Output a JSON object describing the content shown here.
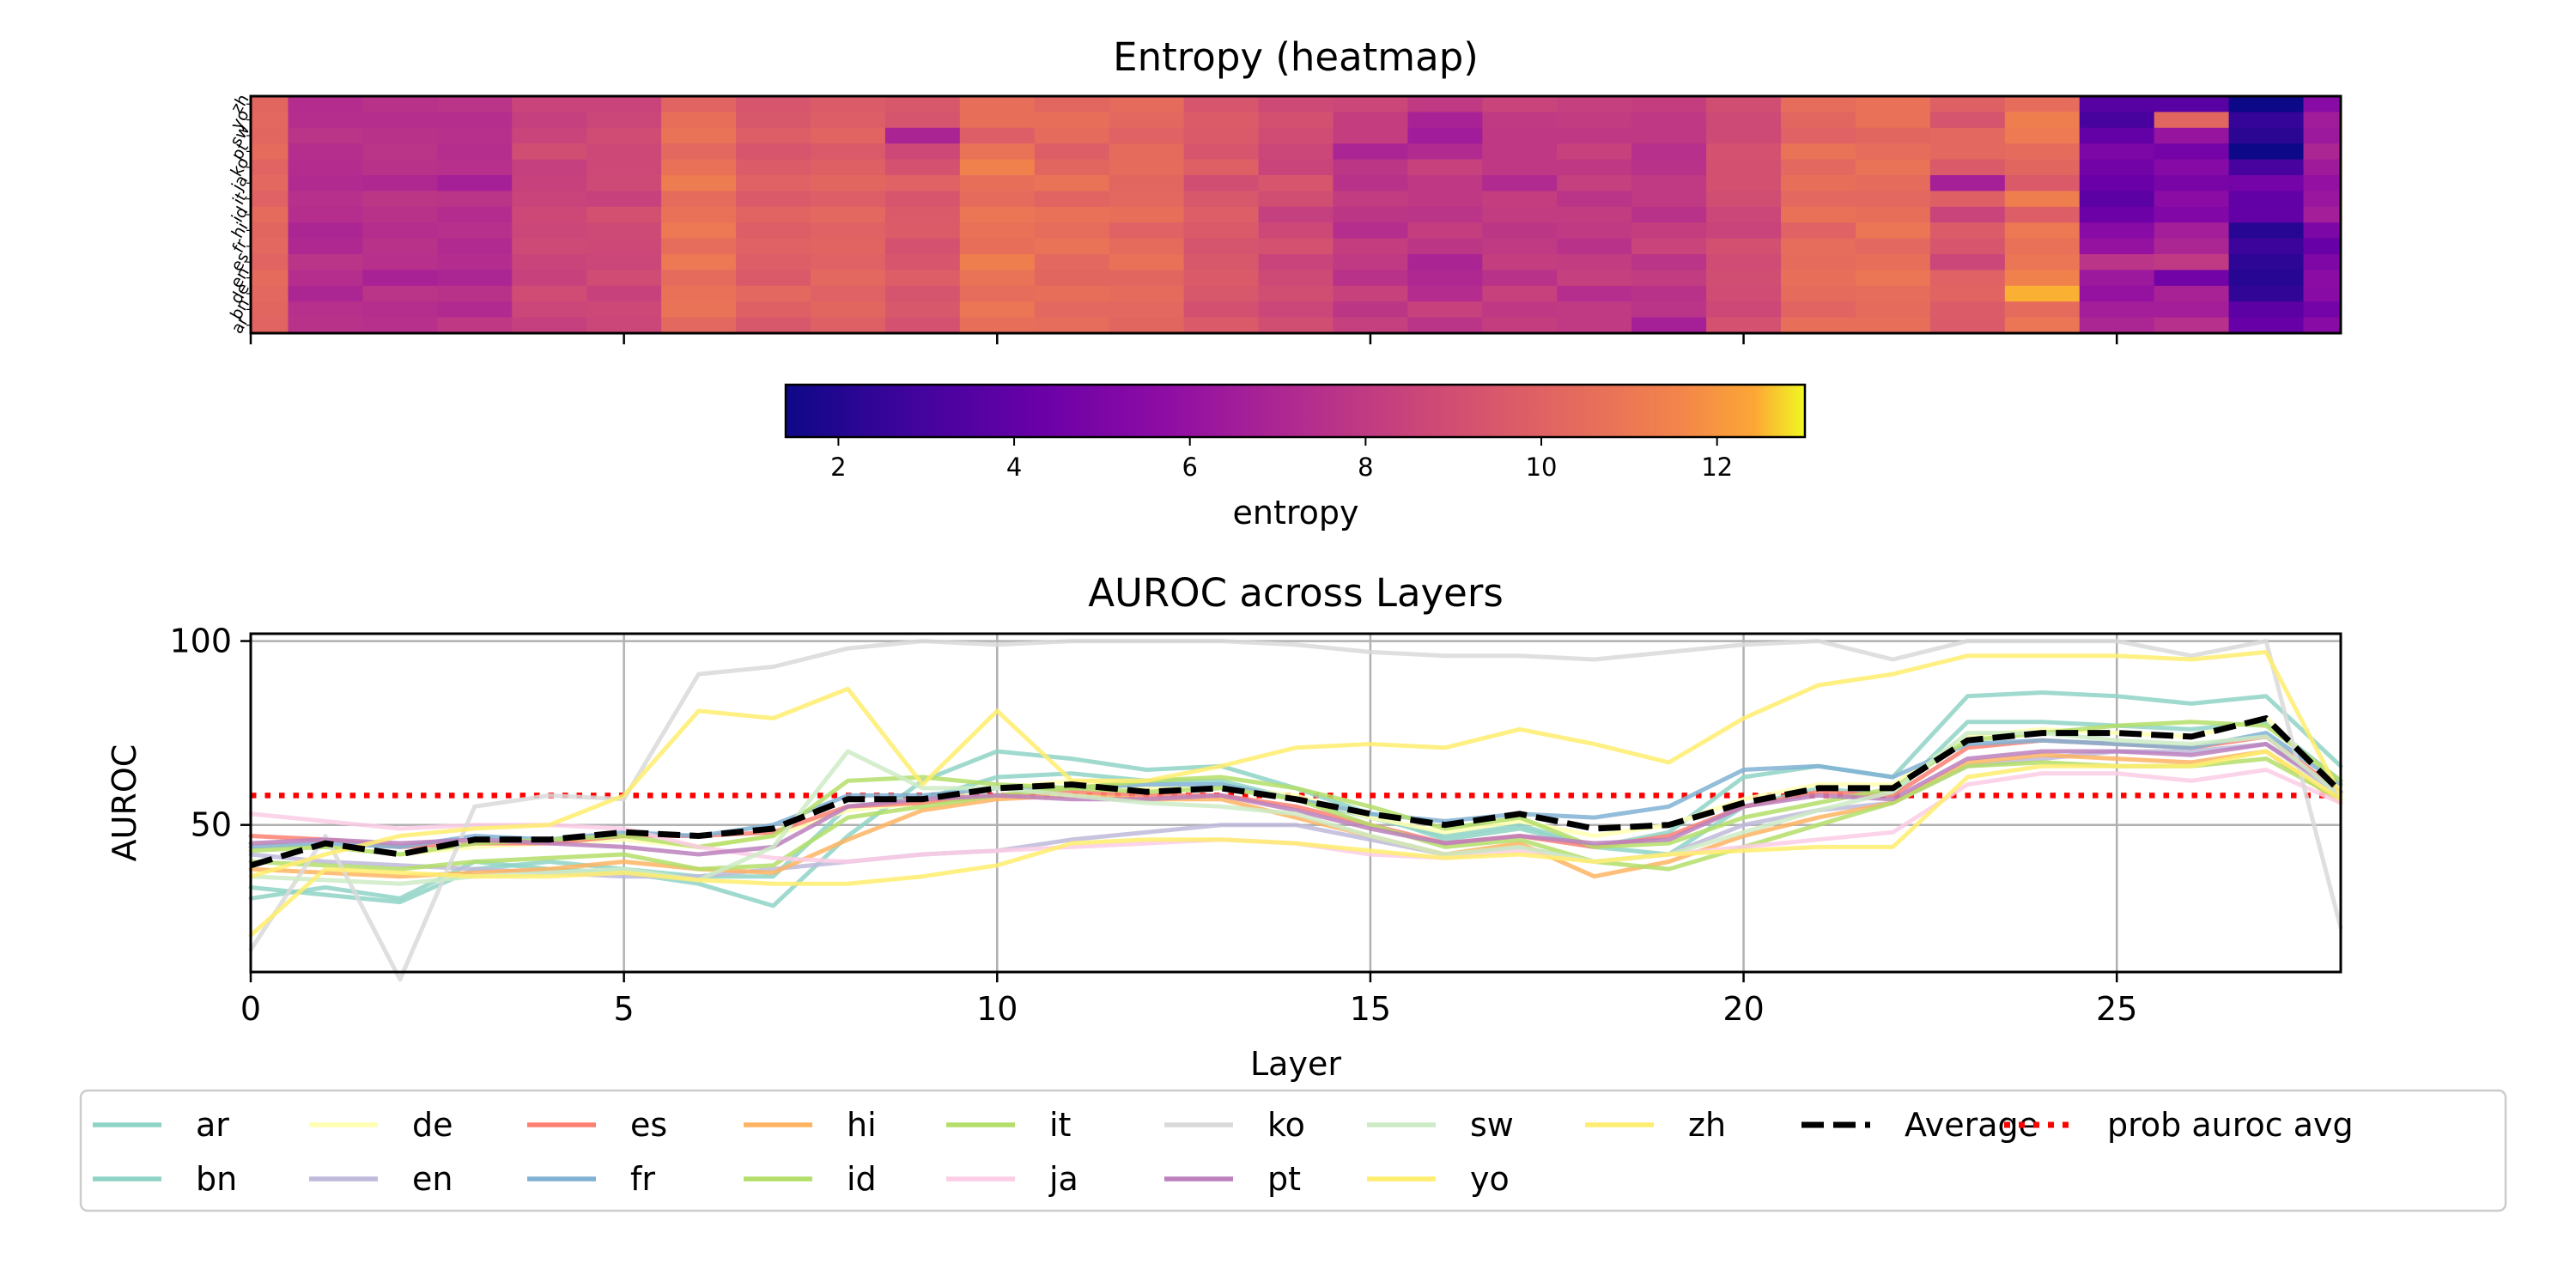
{
  "chart_data": [
    {
      "type": "heatmap",
      "title": "Entropy (heatmap)",
      "rows": [
        "zh",
        "yo",
        "sw",
        "pt",
        "ko",
        "ja",
        "it",
        "id",
        "hi",
        "fr",
        "es",
        "en",
        "de",
        "bn",
        "ar"
      ],
      "n_layers": 29,
      "x_ticks": [
        0,
        5,
        10,
        15,
        20,
        25
      ],
      "colormap": "plasma",
      "colorbar": {
        "label": "entropy",
        "range": [
          1.4,
          13.0
        ],
        "ticks": [
          2,
          4,
          6,
          8,
          10,
          12
        ]
      },
      "values": [
        [
          10.2,
          7.3,
          7.6,
          7.7,
          8.5,
          8.5,
          10.1,
          9.4,
          9.7,
          9.5,
          10.6,
          10.2,
          10.4,
          9.4,
          8.8,
          8.6,
          8.0,
          8.5,
          8.3,
          8.2,
          9.0,
          10.5,
          10.7,
          9.9,
          10.5,
          3.6,
          3.7,
          1.4,
          5.5
        ],
        [
          10.3,
          7.4,
          7.4,
          7.4,
          8.3,
          8.6,
          10.6,
          9.5,
          9.8,
          9.3,
          10.6,
          10.6,
          10.3,
          9.7,
          9.1,
          8.2,
          6.8,
          8.0,
          8.1,
          7.9,
          8.8,
          10.2,
          10.7,
          9.3,
          11.3,
          3.1,
          10.2,
          2.5,
          6.5
        ],
        [
          10.2,
          7.7,
          7.6,
          7.5,
          8.5,
          8.9,
          10.8,
          9.8,
          10.1,
          6.9,
          9.8,
          10.4,
          10.0,
          9.6,
          8.9,
          8.2,
          6.5,
          7.9,
          7.9,
          7.9,
          8.8,
          10.0,
          10.2,
          10.3,
          11.1,
          4.1,
          6.1,
          2.2,
          6.3
        ],
        [
          10.4,
          7.4,
          7.7,
          7.4,
          9.0,
          8.7,
          10.3,
          9.4,
          9.6,
          8.7,
          10.8,
          9.8,
          10.4,
          9.4,
          8.6,
          6.9,
          7.2,
          7.9,
          8.4,
          7.5,
          9.2,
          10.8,
          10.5,
          10.3,
          10.4,
          5.0,
          4.7,
          1.4,
          7.0
        ],
        [
          10.1,
          7.3,
          7.6,
          7.5,
          8.3,
          8.7,
          10.7,
          9.7,
          9.9,
          9.2,
          11.4,
          10.2,
          10.4,
          9.9,
          8.5,
          7.8,
          8.4,
          7.9,
          7.9,
          7.6,
          9.1,
          10.3,
          10.8,
          9.6,
          10.2,
          4.6,
          5.4,
          3.1,
          6.4
        ],
        [
          10.3,
          7.2,
          7.1,
          6.7,
          8.4,
          8.8,
          11.2,
          10.0,
          10.2,
          10.0,
          10.6,
          10.8,
          10.2,
          9.0,
          9.4,
          7.6,
          7.9,
          7.2,
          8.3,
          8.0,
          9.1,
          10.6,
          10.4,
          6.7,
          9.6,
          4.3,
          4.9,
          4.7,
          5.9
        ],
        [
          10.0,
          7.5,
          7.8,
          7.7,
          8.5,
          8.4,
          10.4,
          9.6,
          9.8,
          9.4,
          10.4,
          10.1,
          10.3,
          9.5,
          9.0,
          8.1,
          7.9,
          8.2,
          7.7,
          8.0,
          9.0,
          10.3,
          10.3,
          9.9,
          11.3,
          3.8,
          5.6,
          4.0,
          6.2
        ],
        [
          10.4,
          7.4,
          7.6,
          7.3,
          8.7,
          9.1,
          10.7,
          10.1,
          10.3,
          9.6,
          10.9,
          10.7,
          10.6,
          9.8,
          8.3,
          7.8,
          7.7,
          8.1,
          8.1,
          7.6,
          8.6,
          10.7,
          10.6,
          8.5,
          9.8,
          4.4,
          5.2,
          4.1,
          6.6
        ],
        [
          10.2,
          7.0,
          7.4,
          7.5,
          8.6,
          8.8,
          11.0,
          9.8,
          10.0,
          9.7,
          10.7,
          10.5,
          10.0,
          9.6,
          8.7,
          7.4,
          8.2,
          7.8,
          8.0,
          8.2,
          8.5,
          10.0,
          10.9,
          9.7,
          11.0,
          5.5,
          6.6,
          2.1,
          5.0
        ],
        [
          10.3,
          7.1,
          7.6,
          7.2,
          8.8,
          8.7,
          10.5,
          10.0,
          10.1,
          9.2,
          10.6,
          10.8,
          10.4,
          9.3,
          9.2,
          8.2,
          7.8,
          8.0,
          7.6,
          8.5,
          9.1,
          10.5,
          10.3,
          9.4,
          10.7,
          6.0,
          7.0,
          2.7,
          4.2
        ],
        [
          10.1,
          7.7,
          7.5,
          7.3,
          8.5,
          8.6,
          11.0,
          9.8,
          10.0,
          9.4,
          11.3,
          10.3,
          10.7,
          9.5,
          8.5,
          8.0,
          6.9,
          8.2,
          8.1,
          7.7,
          8.9,
          10.4,
          10.6,
          8.6,
          10.9,
          7.7,
          8.0,
          2.3,
          5.1
        ],
        [
          10.4,
          7.4,
          6.8,
          7.0,
          8.4,
          8.9,
          10.4,
          9.6,
          10.3,
          9.8,
          10.8,
          10.2,
          10.2,
          9.6,
          8.8,
          7.6,
          7.1,
          7.6,
          8.3,
          8.1,
          9.0,
          10.6,
          10.9,
          10.0,
          11.4,
          6.3,
          4.6,
          2.1,
          5.6
        ],
        [
          10.3,
          7.0,
          7.7,
          7.6,
          8.9,
          8.4,
          10.7,
          10.3,
          10.0,
          9.3,
          10.5,
          10.6,
          10.4,
          9.5,
          9.0,
          8.4,
          7.3,
          8.4,
          7.4,
          7.6,
          8.9,
          10.4,
          10.5,
          10.1,
          12.5,
          6.0,
          6.8,
          2.4,
          5.5
        ],
        [
          10.2,
          7.5,
          7.4,
          7.2,
          8.6,
          8.7,
          10.8,
          9.9,
          10.2,
          9.5,
          10.9,
          10.3,
          10.3,
          9.1,
          8.6,
          7.8,
          8.4,
          7.9,
          8.0,
          7.7,
          8.7,
          10.1,
          10.4,
          9.7,
          10.4,
          6.6,
          6.6,
          3.8,
          4.7
        ],
        [
          10.1,
          7.6,
          7.5,
          7.9,
          8.3,
          8.6,
          10.3,
          9.5,
          9.9,
          9.2,
          10.6,
          10.5,
          10.2,
          9.6,
          9.0,
          8.3,
          7.7,
          8.2,
          8.0,
          6.7,
          9.2,
          10.6,
          10.6,
          9.6,
          10.9,
          7.0,
          7.5,
          4.2,
          5.5
        ]
      ]
    },
    {
      "type": "line",
      "title": "AUROC across Layers",
      "xlabel": "Layer",
      "ylabel": "AUROC",
      "xlim": [
        0,
        28
      ],
      "ylim": [
        10,
        102
      ],
      "xticks": [
        0,
        5,
        10,
        15,
        20,
        25
      ],
      "yticks": [
        50,
        100
      ],
      "grid": true,
      "x": [
        0,
        1,
        2,
        3,
        4,
        5,
        6,
        7,
        8,
        9,
        10,
        11,
        12,
        13,
        14,
        15,
        16,
        17,
        18,
        19,
        20,
        21,
        22,
        23,
        24,
        25,
        26,
        27,
        28
      ],
      "series": [
        {
          "name": "ar",
          "color": "#8fd3c7",
          "style": "solid",
          "values": [
            33,
            31,
            29,
            38,
            40,
            38,
            36,
            36,
            55,
            57,
            63,
            64,
            62,
            62,
            57,
            52,
            47,
            50,
            44,
            42,
            55,
            60,
            58,
            78,
            78,
            77,
            76,
            78,
            62
          ]
        },
        {
          "name": "bn",
          "color": "#8fd3c7",
          "style": "solid",
          "values": [
            30,
            33,
            30,
            40,
            38,
            37,
            34,
            28,
            47,
            62,
            70,
            68,
            65,
            66,
            60,
            53,
            46,
            49,
            44,
            48,
            63,
            66,
            63,
            85,
            86,
            85,
            83,
            85,
            66
          ]
        },
        {
          "name": "de",
          "color": "#ffffb3",
          "style": "solid",
          "values": [
            45,
            44,
            42,
            44,
            45,
            46,
            44,
            47,
            54,
            56,
            60,
            62,
            60,
            60,
            58,
            52,
            48,
            51,
            47,
            50,
            57,
            61,
            61,
            74,
            76,
            75,
            74,
            79,
            60
          ]
        },
        {
          "name": "en",
          "color": "#bebada",
          "style": "solid",
          "values": [
            42,
            40,
            39,
            38,
            37,
            36,
            36,
            38,
            40,
            42,
            43,
            46,
            48,
            50,
            50,
            46,
            42,
            44,
            40,
            42,
            50,
            54,
            56,
            66,
            68,
            70,
            70,
            72,
            58
          ]
        },
        {
          "name": "es",
          "color": "#fb8072",
          "style": "solid",
          "values": [
            47,
            46,
            44,
            45,
            45,
            47,
            47,
            48,
            55,
            56,
            58,
            59,
            58,
            58,
            55,
            50,
            45,
            47,
            44,
            47,
            55,
            59,
            58,
            71,
            73,
            72,
            71,
            74,
            59
          ]
        },
        {
          "name": "fr",
          "color": "#80b1d3",
          "style": "solid",
          "values": [
            44,
            45,
            44,
            47,
            46,
            48,
            47,
            50,
            58,
            58,
            60,
            60,
            61,
            61,
            57,
            53,
            51,
            53,
            52,
            55,
            65,
            66,
            63,
            72,
            73,
            72,
            71,
            75,
            61
          ]
        },
        {
          "name": "hi",
          "color": "#fdb462",
          "style": "solid",
          "values": [
            38,
            37,
            36,
            37,
            38,
            40,
            38,
            37,
            46,
            54,
            57,
            58,
            57,
            57,
            52,
            47,
            42,
            45,
            36,
            40,
            47,
            52,
            56,
            67,
            69,
            68,
            67,
            70,
            56
          ]
        },
        {
          "name": "id",
          "color": "#b3de69",
          "style": "solid",
          "values": [
            40,
            39,
            38,
            40,
            41,
            42,
            38,
            39,
            52,
            55,
            58,
            60,
            59,
            60,
            57,
            50,
            44,
            46,
            40,
            38,
            44,
            50,
            56,
            66,
            67,
            66,
            66,
            68,
            57
          ]
        },
        {
          "name": "it",
          "color": "#b3de69",
          "style": "solid",
          "values": [
            43,
            44,
            42,
            45,
            46,
            47,
            44,
            47,
            62,
            63,
            61,
            60,
            62,
            63,
            60,
            55,
            49,
            52,
            44,
            45,
            52,
            56,
            60,
            73,
            75,
            77,
            78,
            77,
            62
          ]
        },
        {
          "name": "ja",
          "color": "#fccde5",
          "style": "solid",
          "values": [
            53,
            51,
            49,
            50,
            50,
            49,
            44,
            41,
            40,
            42,
            43,
            44,
            45,
            46,
            45,
            42,
            41,
            43,
            40,
            42,
            44,
            46,
            48,
            61,
            64,
            64,
            62,
            65,
            56
          ]
        },
        {
          "name": "ko",
          "color": "#d9d9d9",
          "style": "solid",
          "values": [
            16,
            47,
            8,
            55,
            58,
            57,
            91,
            93,
            98,
            100,
            99,
            100,
            100,
            100,
            99,
            97,
            96,
            96,
            95,
            97,
            99,
            100,
            95,
            100,
            100,
            100,
            96,
            100,
            22
          ]
        },
        {
          "name": "pt",
          "color": "#bc80bd",
          "style": "solid",
          "values": [
            45,
            46,
            45,
            46,
            45,
            44,
            42,
            44,
            55,
            57,
            58,
            57,
            57,
            58,
            54,
            49,
            45,
            47,
            45,
            46,
            55,
            58,
            57,
            68,
            70,
            70,
            69,
            72,
            59
          ]
        },
        {
          "name": "sw",
          "color": "#ccebc5",
          "style": "solid",
          "values": [
            36,
            35,
            34,
            36,
            37,
            38,
            35,
            44,
            70,
            60,
            60,
            58,
            56,
            55,
            53,
            47,
            42,
            44,
            40,
            42,
            48,
            54,
            59,
            75,
            75,
            73,
            72,
            74,
            58
          ]
        },
        {
          "name": "yo",
          "color": "#ffed6f",
          "style": "solid",
          "values": [
            20,
            38,
            37,
            36,
            36,
            37,
            35,
            34,
            34,
            36,
            39,
            45,
            46,
            46,
            45,
            43,
            41,
            42,
            40,
            42,
            43,
            44,
            44,
            63,
            66,
            66,
            66,
            70,
            57
          ]
        },
        {
          "name": "zh",
          "color": "#ffed6f",
          "style": "solid",
          "values": [
            36,
            42,
            47,
            49,
            50,
            58,
            81,
            79,
            87,
            61,
            81,
            62,
            62,
            66,
            71,
            72,
            71,
            76,
            72,
            67,
            79,
            88,
            91,
            96,
            96,
            96,
            95,
            97,
            58
          ]
        },
        {
          "name": "Average",
          "color": "#000000",
          "style": "dashed",
          "values": [
            39,
            45,
            42,
            46,
            46,
            48,
            47,
            49,
            57,
            57,
            60,
            61,
            59,
            60,
            57,
            53,
            50,
            53,
            49,
            50,
            56,
            60,
            60,
            73,
            75,
            75,
            74,
            79,
            59
          ]
        }
      ],
      "reference_line": {
        "name": "prob auroc avg",
        "value": 58,
        "color": "#ff0000",
        "style": "dotted"
      },
      "legend": {
        "placement": "bottom",
        "columns": 10,
        "entries": [
          "ar",
          "bn",
          "de",
          "en",
          "es",
          "fr",
          "hi",
          "id",
          "it",
          "ja",
          "ko",
          "pt",
          "sw",
          "yo",
          "zh",
          "Average",
          "prob auroc avg"
        ]
      }
    }
  ]
}
